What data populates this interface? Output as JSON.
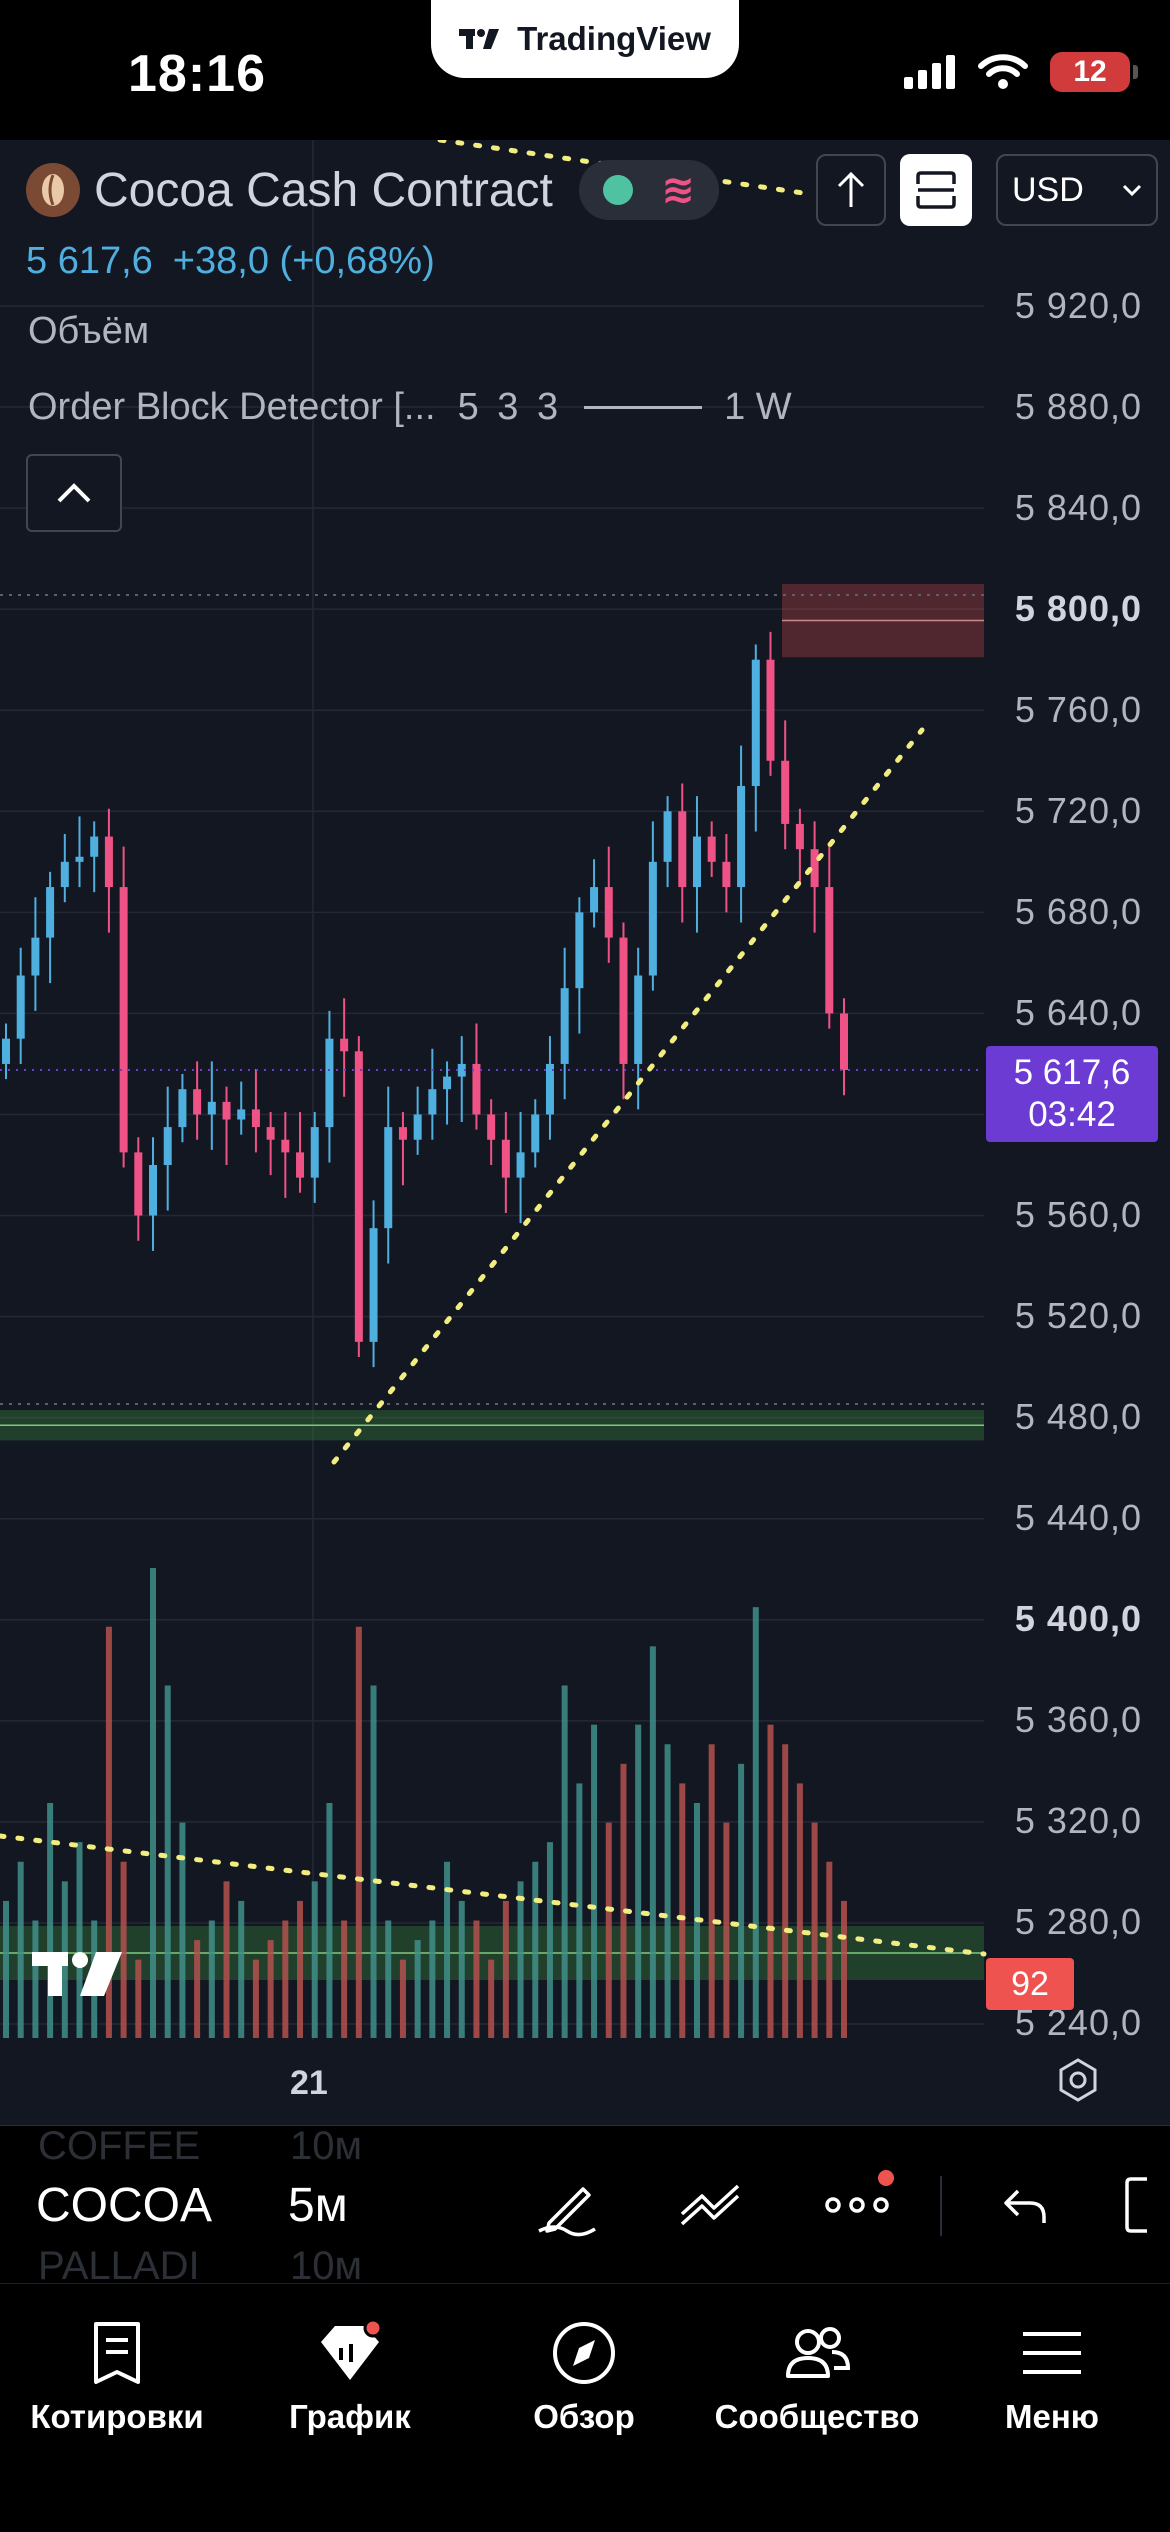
{
  "status_bar": {
    "time": "18:16",
    "app_name": "TradingView",
    "battery_level": "12",
    "icons": [
      "signal-icon",
      "wifi-icon",
      "battery-icon"
    ]
  },
  "chart_header": {
    "symbol_name": "Cocoa Cash Contract",
    "currency": "USD",
    "price": "5 617,6",
    "change": "+38,0 (+0,68%)",
    "indicator_volume": "Объём",
    "indicator_ob_name": "Order Block Detector [...",
    "indicator_ob_params": "5 3 3",
    "indicator_ob_tf": "1 W"
  },
  "price_axis": {
    "labels": [
      "5 920,0",
      "5 880,0",
      "5 840,0",
      "5 800,0",
      "5 760,0",
      "5 720,0",
      "5 680,0",
      "5 640,0",
      "5 560,0",
      "5 520,0",
      "5 480,0",
      "5 440,0",
      "5 400,0",
      "5 360,0",
      "5 320,0",
      "5 280,0",
      "5 240,0"
    ],
    "bold_labels": [
      "5 800,0",
      "5 400,0"
    ],
    "last_price": "5 617,6",
    "countdown": "03:42",
    "volume_value": "92"
  },
  "time_axis": {
    "label": "21"
  },
  "chart_data": {
    "type": "candlestick",
    "title": "Cocoa Cash Contract",
    "interval": "5м",
    "y_range": [
      5240,
      5940
    ],
    "up_color": "#4fb0e0",
    "down_color": "#ef5386",
    "accent_color": "#6c3bd4",
    "order_block_bearish": [
      5781,
      5810
    ],
    "order_block_bullish": [
      5471,
      5483
    ],
    "trendline_start": [
      5465,
      5725
    ],
    "closes": [
      5630,
      5655,
      5670,
      5690,
      5700,
      5702,
      5710,
      5690,
      5585,
      5560,
      5580,
      5595,
      5610,
      5600,
      5605,
      5598,
      5602,
      5595,
      5590,
      5585,
      5575,
      5595,
      5630,
      5625,
      5510,
      5555,
      5595,
      5590,
      5600,
      5610,
      5615,
      5620,
      5600,
      5590,
      5575,
      5585,
      5600,
      5620,
      5650,
      5680,
      5690,
      5670,
      5620,
      5655,
      5700,
      5720,
      5690,
      5710,
      5700,
      5690,
      5730,
      5780,
      5740,
      5715,
      5705,
      5690,
      5640,
      5617.6
    ],
    "volumes": [
      70,
      90,
      60,
      120,
      80,
      100,
      60,
      210,
      90,
      40,
      240,
      180,
      110,
      50,
      60,
      80,
      70,
      40,
      50,
      60,
      70,
      80,
      120,
      60,
      210,
      180,
      60,
      40,
      50,
      60,
      90,
      70,
      60,
      40,
      70,
      80,
      90,
      100,
      180,
      130,
      160,
      110,
      140,
      160,
      200,
      150,
      130,
      120,
      150,
      110,
      140,
      220,
      160,
      150,
      130,
      110,
      90,
      70
    ]
  },
  "toolbar": {
    "symbol": "COCOA",
    "timeframe": "5м",
    "ghost_prev_symbol": "COFFEE",
    "ghost_prev_tf": "10м",
    "ghost_next_symbol": "PALLADI",
    "ghost_next_tf": "10м"
  },
  "bottom_nav": {
    "items": [
      {
        "label": "Котировки",
        "icon": "quotes-icon"
      },
      {
        "label": "График",
        "icon": "chart-icon"
      },
      {
        "label": "Обзор",
        "icon": "compass-icon"
      },
      {
        "label": "Сообщество",
        "icon": "community-icon"
      },
      {
        "label": "Меню",
        "icon": "menu-icon"
      }
    ]
  }
}
